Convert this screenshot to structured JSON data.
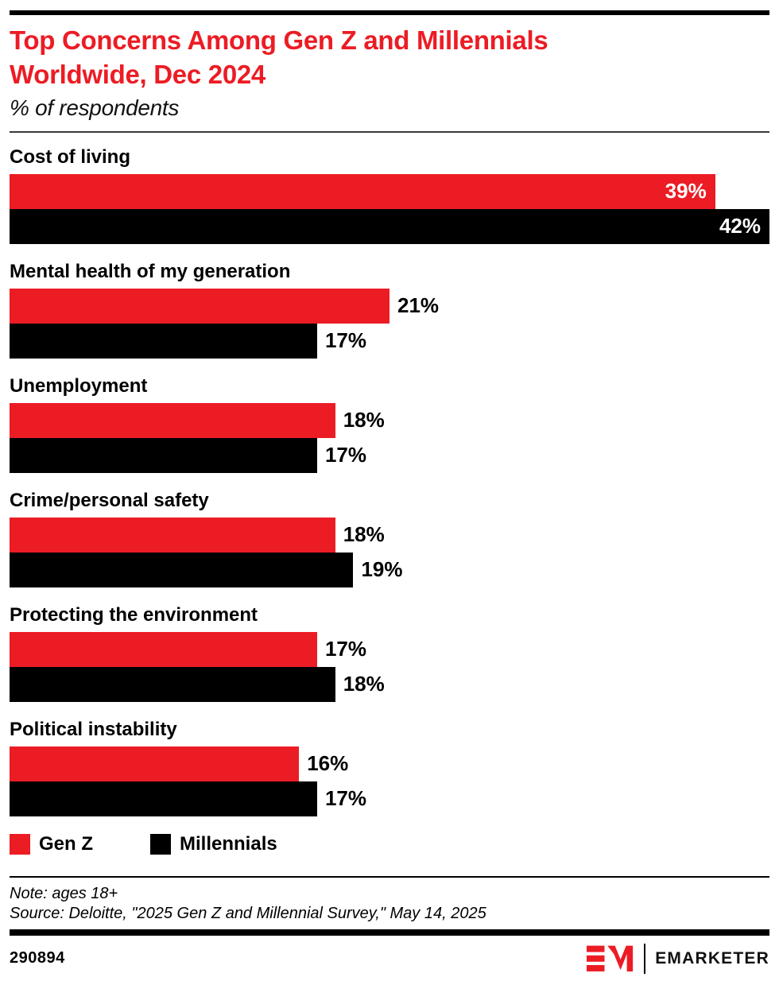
{
  "header": {
    "title_lines": [
      "Top Concerns Among Gen Z and Millennials",
      "Worldwide, Dec 2024"
    ],
    "subtitle": "% of respondents"
  },
  "chart_data": {
    "type": "bar",
    "orientation": "horizontal",
    "title": "Top Concerns Among Gen Z and Millennials Worldwide, Dec 2024",
    "subtitle": "% of respondents",
    "categories": [
      "Cost of living",
      "Mental health of my generation",
      "Unemployment",
      "Crime/personal safety",
      "Protecting the environment",
      "Political instability"
    ],
    "series": [
      {
        "name": "Gen Z",
        "color": "#EC1C24",
        "values": [
          39,
          21,
          18,
          18,
          17,
          16
        ]
      },
      {
        "name": "Millennials",
        "color": "#000000",
        "values": [
          42,
          17,
          17,
          19,
          18,
          17
        ]
      }
    ],
    "value_suffix": "%",
    "xlim": [
      0,
      42
    ],
    "grid": false,
    "legend_position": "bottom",
    "value_labels": "end-of-bar, inside white when bar is long, outside black otherwise"
  },
  "legend": {
    "items": [
      {
        "label": "Gen Z",
        "color": "#EC1C24"
      },
      {
        "label": "Millennials",
        "color": "#000000"
      }
    ]
  },
  "footer": {
    "note": "Note: ages 18+",
    "source": "Source: Deloitte, \"2025 Gen Z and Millennial Survey,\" May 14, 2025",
    "chart_id": "290894",
    "brand": "EMARKETER"
  },
  "colors": {
    "accent_red": "#EC1C24",
    "bar_black": "#000000",
    "background": "#ffffff"
  }
}
